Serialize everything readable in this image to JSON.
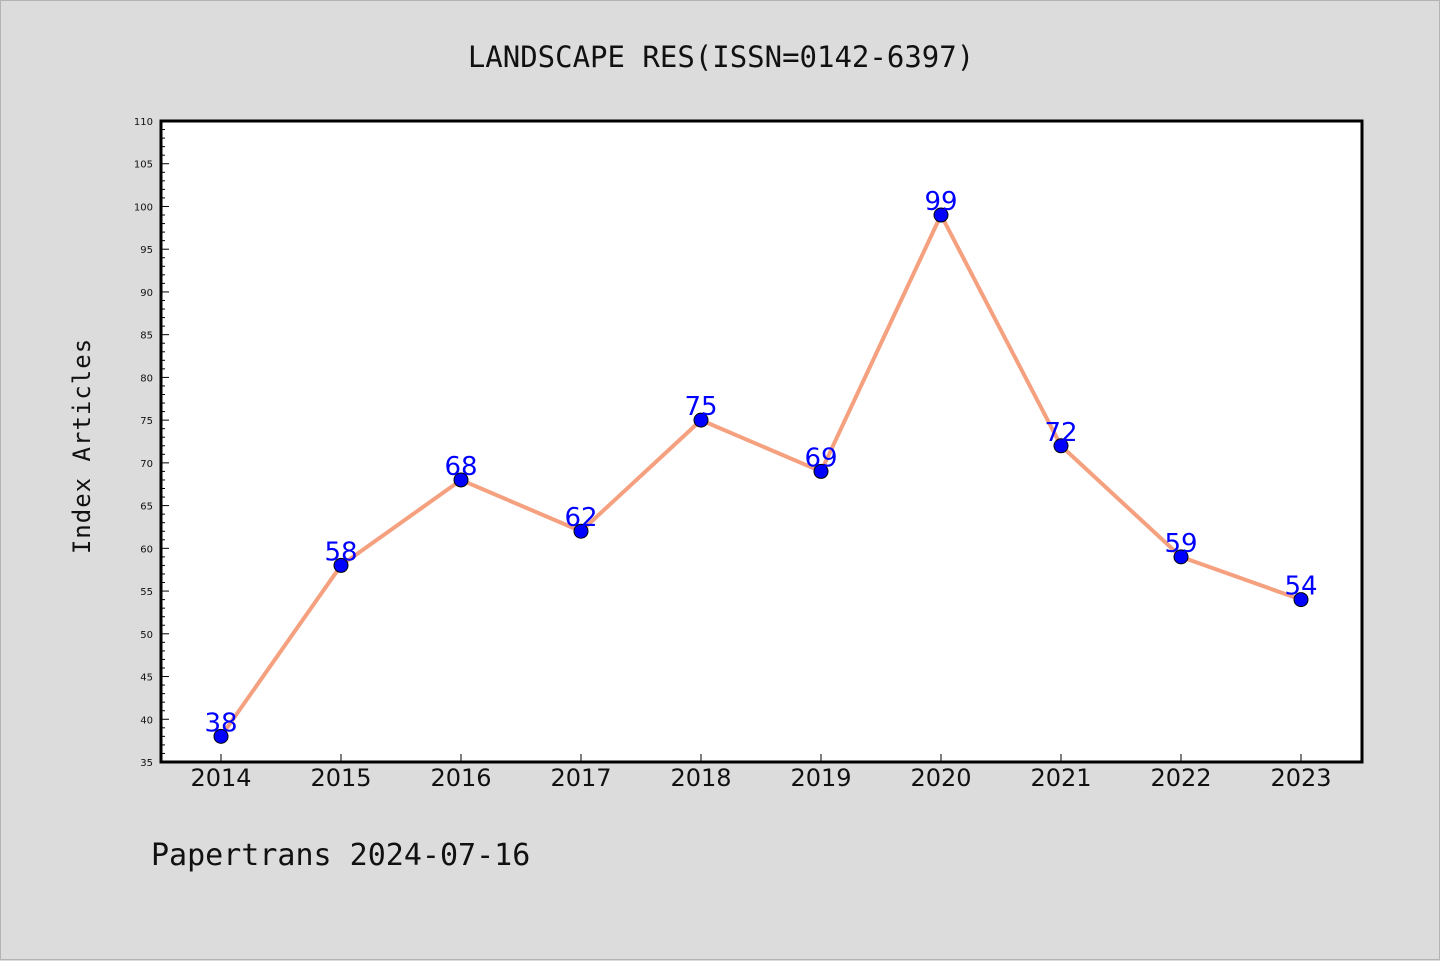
{
  "chart_data": {
    "type": "line",
    "title": "LANDSCAPE RES(ISSN=0142-6397)",
    "ylabel": "Index Articles",
    "xlabel": "",
    "categories": [
      "2014",
      "2015",
      "2016",
      "2017",
      "2018",
      "2019",
      "2020",
      "2021",
      "2022",
      "2023"
    ],
    "values": [
      38,
      58,
      68,
      62,
      75,
      69,
      99,
      72,
      59,
      54
    ],
    "ylim": [
      35,
      110
    ],
    "yticks": [
      "35",
      "40",
      "45",
      "50",
      "55",
      "60",
      "65",
      "70",
      "75",
      "80",
      "85",
      "90",
      "95",
      "100",
      "105",
      "110"
    ],
    "grid": false,
    "legend": "none",
    "colors": {
      "line": "#f5a07e",
      "marker": "#0000ff",
      "marker_edge": "#000000",
      "data_label": "#0000ff",
      "plot_background": "#ffffff",
      "figure_background": "#dcdcdc"
    }
  },
  "footer": {
    "text": "Papertrans 2024-07-16"
  }
}
